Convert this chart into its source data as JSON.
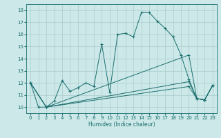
{
  "xlabel": "Humidex (Indice chaleur)",
  "xlim": [
    -0.5,
    23.5
  ],
  "ylim": [
    9.5,
    18.5
  ],
  "yticks": [
    10,
    11,
    12,
    13,
    14,
    15,
    16,
    17,
    18
  ],
  "xticks": [
    0,
    1,
    2,
    3,
    4,
    5,
    6,
    7,
    8,
    9,
    10,
    11,
    12,
    13,
    14,
    15,
    16,
    17,
    18,
    19,
    20,
    21,
    22,
    23
  ],
  "bg_color": "#cce8e8",
  "line_color": "#1a6e6e",
  "grid_color": "#aacccc",
  "series1": [
    [
      0,
      12.0
    ],
    [
      1,
      10.0
    ],
    [
      2,
      10.0
    ],
    [
      3,
      10.5
    ],
    [
      4,
      12.2
    ],
    [
      5,
      11.3
    ],
    [
      6,
      11.6
    ],
    [
      7,
      12.0
    ],
    [
      8,
      11.7
    ],
    [
      9,
      15.2
    ],
    [
      10,
      11.2
    ],
    [
      11,
      16.0
    ],
    [
      12,
      16.1
    ],
    [
      13,
      15.8
    ],
    [
      14,
      17.8
    ],
    [
      15,
      17.8
    ],
    [
      16,
      17.1
    ],
    [
      17,
      16.5
    ],
    [
      18,
      15.8
    ],
    [
      19,
      14.3
    ],
    [
      20,
      12.3
    ],
    [
      21,
      10.7
    ],
    [
      22,
      10.6
    ],
    [
      23,
      11.8
    ]
  ],
  "series2": [
    [
      0,
      12.0
    ],
    [
      2,
      10.0
    ],
    [
      20,
      14.3
    ],
    [
      21,
      10.7
    ],
    [
      22,
      10.6
    ],
    [
      23,
      11.8
    ]
  ],
  "series3": [
    [
      0,
      12.0
    ],
    [
      2,
      10.0
    ],
    [
      20,
      12.1
    ],
    [
      21,
      10.7
    ],
    [
      22,
      10.6
    ],
    [
      23,
      11.8
    ]
  ],
  "series4": [
    [
      0,
      12.0
    ],
    [
      2,
      10.0
    ],
    [
      20,
      11.7
    ],
    [
      21,
      10.7
    ],
    [
      22,
      10.6
    ],
    [
      23,
      11.8
    ]
  ]
}
